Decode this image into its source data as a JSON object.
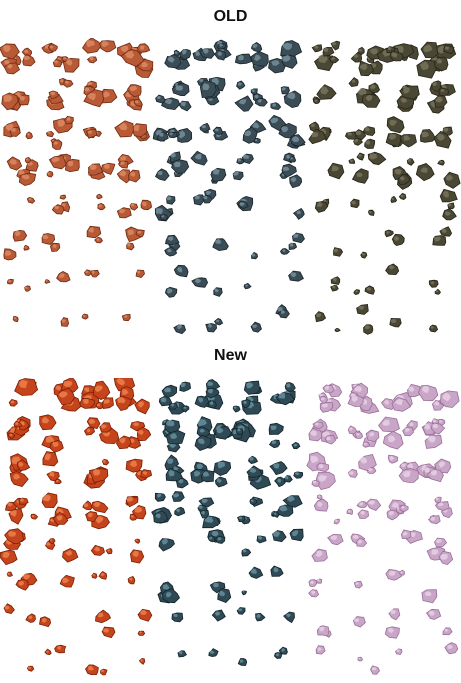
{
  "sections": [
    {
      "title": "OLD",
      "tilesets": [
        {
          "color": "#b85a35",
          "highlight": "#e0906a",
          "shade": "#6e2a12"
        },
        {
          "color": "#3a4c56",
          "highlight": "#7e9aa6",
          "shade": "#1a242a"
        },
        {
          "color": "#4a4734",
          "highlight": "#7d7a62",
          "shade": "#262416"
        }
      ]
    },
    {
      "title": "New",
      "tilesets": [
        {
          "color": "#c5441b",
          "highlight": "#f08a55",
          "shade": "#7a1e06"
        },
        {
          "color": "#2f4a55",
          "highlight": "#6f9aa8",
          "shade": "#12242c"
        },
        {
          "color": "#c9a6c7",
          "highlight": "#ead5e9",
          "shade": "#9a6f98"
        }
      ]
    }
  ]
}
